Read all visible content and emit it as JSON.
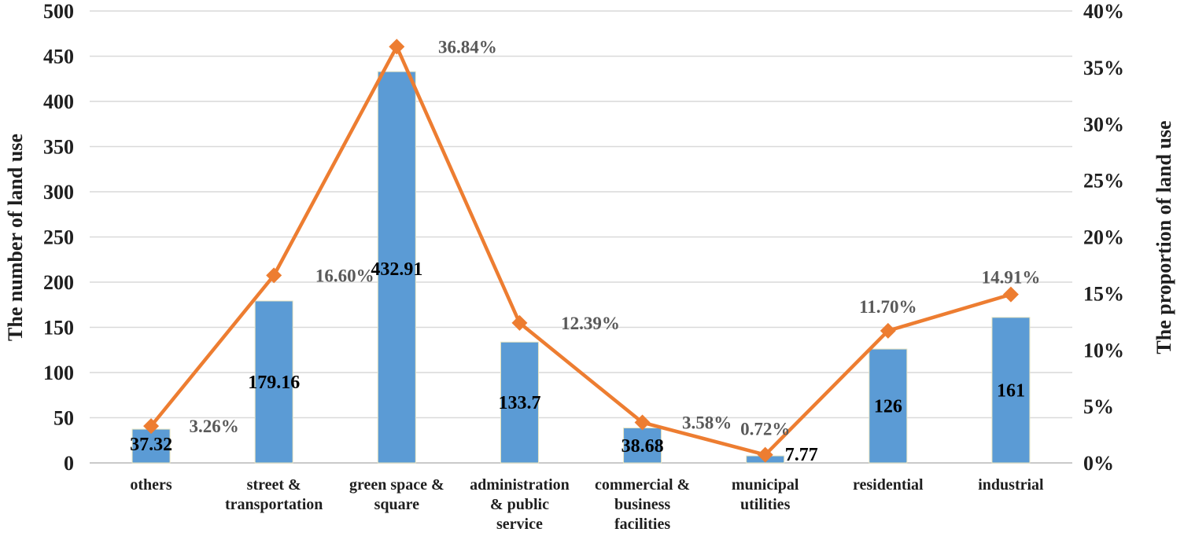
{
  "chart_data": {
    "type": "bar",
    "title": "",
    "categories": [
      [
        "others"
      ],
      [
        "street &",
        "transportation"
      ],
      [
        "green space &",
        "square"
      ],
      [
        "administration",
        "& public",
        "service"
      ],
      [
        "commercial &",
        "business",
        "facilities"
      ],
      [
        "municipal",
        "utilities"
      ],
      [
        "residential"
      ],
      [
        "industrial"
      ]
    ],
    "series": [
      {
        "name": "",
        "type": "bar",
        "axis": "left",
        "values": [
          37.32,
          179.16,
          432.91,
          133.7,
          38.68,
          7.77,
          126,
          161
        ],
        "labels": [
          "37.32",
          "179.16",
          "432.91",
          "133.7",
          "38.68",
          "7.77",
          "126",
          "161"
        ]
      },
      {
        "name": "",
        "type": "line",
        "axis": "right",
        "marker": "diamond",
        "values": [
          3.26,
          16.6,
          36.84,
          12.39,
          3.58,
          0.72,
          11.7,
          14.91
        ],
        "labels": [
          "3.26%",
          "16.60%",
          "36.84%",
          "12.39%",
          "3.58%",
          "0.72%",
          "11.70%",
          "14.91%"
        ]
      }
    ],
    "ylabel": "The number of land use",
    "y2label": "The proportion of land use",
    "ylim": [
      0,
      500
    ],
    "y2lim": [
      0,
      40
    ],
    "yticks": [
      "0",
      "50",
      "100",
      "150",
      "200",
      "250",
      "300",
      "350",
      "400",
      "450",
      "500"
    ],
    "y2ticks": [
      "0%",
      "5%",
      "10%",
      "15%",
      "20%",
      "25%",
      "30%",
      "35%",
      "40%"
    ],
    "grid": true,
    "legend": "none",
    "colors": {
      "bar": "#5b9bd5",
      "line": "#ed7d31",
      "grid": "#d9d9d9"
    }
  }
}
